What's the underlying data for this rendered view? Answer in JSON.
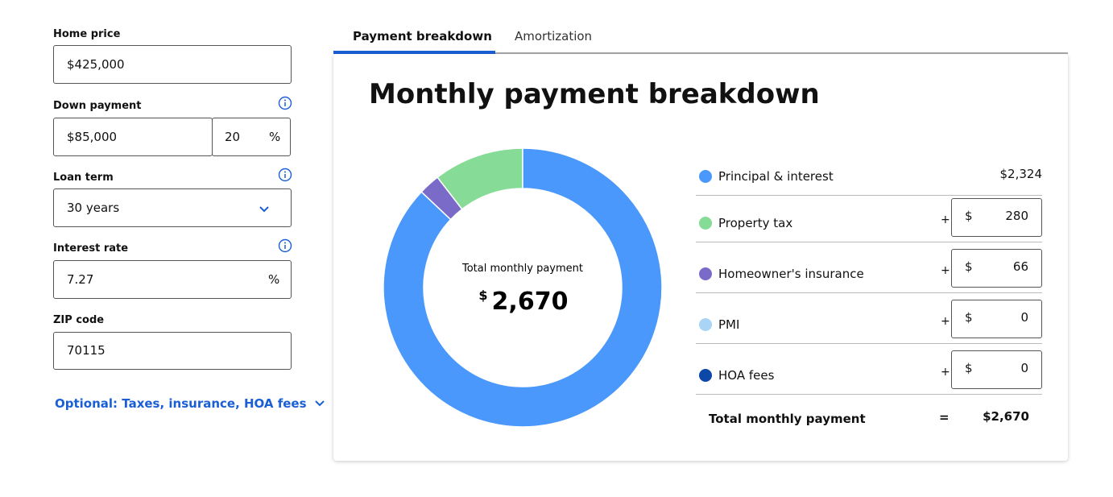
{
  "form": {
    "home_price": {
      "label": "Home price",
      "value": "$425,000"
    },
    "down_payment": {
      "label": "Down payment",
      "value": "$85,000",
      "percent": "20",
      "unit": "%"
    },
    "loan_term": {
      "label": "Loan term",
      "value": "30 years"
    },
    "interest_rate": {
      "label": "Interest rate",
      "value": "7.27",
      "unit": "%"
    },
    "zip_code": {
      "label": "ZIP code",
      "value": "70115"
    },
    "optional_link": "Optional: Taxes, insurance, HOA fees"
  },
  "tabs": [
    "Payment breakdown",
    "Amortization"
  ],
  "panel": {
    "title": "Monthly payment breakdown",
    "currency_symbol": "$",
    "plus": "+",
    "equals": "=",
    "donut_center": {
      "label": "Total monthly payment",
      "value": "2,670"
    },
    "items": [
      {
        "name": "Principal & interest",
        "color": "#4a98fb",
        "value": 2324,
        "value_label": "$2,324"
      },
      {
        "name": "Property tax",
        "color": "#86dc97",
        "value": 280
      },
      {
        "name": "Homeowner's insurance",
        "color": "#7b6bc8",
        "value": 66
      },
      {
        "name": "PMI",
        "color": "#a9d4f5",
        "value": 0
      },
      {
        "name": "HOA fees",
        "color": "#0d47a8",
        "value": 0
      }
    ],
    "total": {
      "label": "Total monthly payment",
      "value": "$2,670"
    }
  }
}
